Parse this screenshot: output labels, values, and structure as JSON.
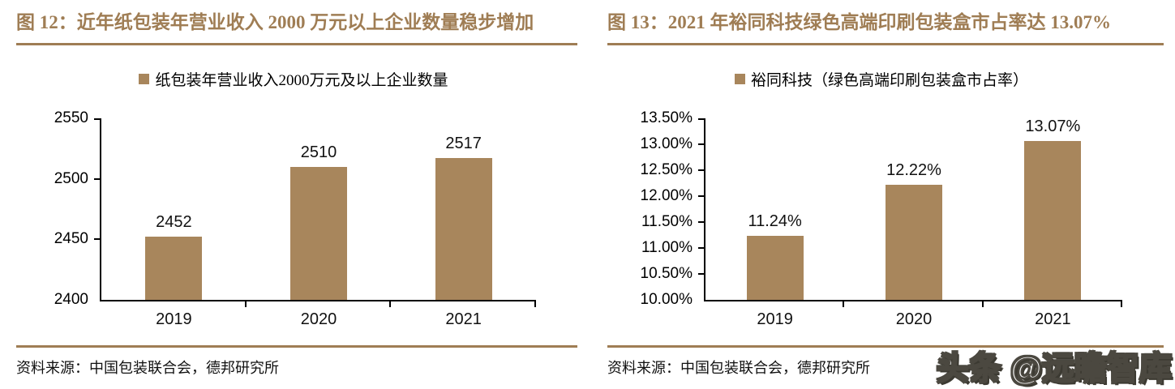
{
  "accent_color": "#9F7D54",
  "bar_color": "#A8865C",
  "watermark": "头条 @远瞻智库",
  "panels": [
    {
      "title": "图 12：近年纸包装年营业收入 2000 万元以上企业数量稳步增加",
      "legend": "纸包装年营业收入2000万元及以上企业数量",
      "source": "资料来源：中国包装联合会，德邦研究所"
    },
    {
      "title": "图 13：2021 年裕同科技绿色高端印刷包装盒市占率达 13.07%",
      "legend": "裕同科技（绿色高端印刷包装盒市占率）",
      "source": "资料来源：中国包装联合会，德邦研究所"
    }
  ],
  "chart_data": [
    {
      "type": "bar",
      "title": "图 12：近年纸包装年营业收入 2000 万元以上企业数量稳步增加",
      "legend": [
        "纸包装年营业收入2000万元及以上企业数量"
      ],
      "legend_position": "top-center",
      "categories": [
        "2019",
        "2020",
        "2021"
      ],
      "values": [
        2452,
        2510,
        2517
      ],
      "data_labels": [
        "2452",
        "2510",
        "2517"
      ],
      "ylim": [
        2400,
        2550
      ],
      "ytick_step": 50,
      "ytick_labels": [
        "2400",
        "2450",
        "2500",
        "2550"
      ],
      "grid": false,
      "bar_color": "#A8865C",
      "source": "资料来源：中国包装联合会，德邦研究所"
    },
    {
      "type": "bar",
      "title": "图 13：2021 年裕同科技绿色高端印刷包装盒市占率达 13.07%",
      "legend": [
        "裕同科技（绿色高端印刷包装盒市占率）"
      ],
      "legend_position": "top-center",
      "categories": [
        "2019",
        "2020",
        "2021"
      ],
      "values": [
        11.24,
        12.22,
        13.07
      ],
      "data_labels": [
        "11.24%",
        "12.22%",
        "13.07%"
      ],
      "ylim": [
        10.0,
        13.5
      ],
      "ytick_step": 0.5,
      "ytick_labels": [
        "10.00%",
        "10.50%",
        "11.00%",
        "11.50%",
        "12.00%",
        "12.50%",
        "13.00%",
        "13.50%"
      ],
      "grid": false,
      "bar_color": "#A8865C",
      "source": "资料来源：中国包装联合会，德邦研究所"
    }
  ]
}
